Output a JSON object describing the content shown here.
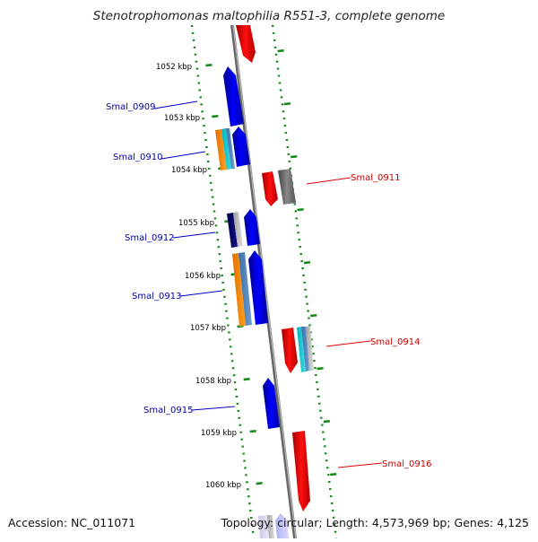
{
  "title": "Stenotrophomonas maltophilia R551-3, complete genome",
  "footer": {
    "accession": "Accession: NC_011071",
    "topology": "Topology: circular; Length: 4,573,969 bp; Genes: 4,125"
  },
  "ticks": [
    "1052 kbp",
    "1053 kbp",
    "1054 kbp",
    "1055 kbp",
    "1056 kbp",
    "1057 kbp",
    "1058 kbp",
    "1059 kbp",
    "1060 kbp"
  ],
  "genes_left": [
    "Smal_0909",
    "Smal_0910",
    "Smal_0912",
    "Smal_0913",
    "Smal_0915"
  ],
  "genes_right": [
    "Smal_0911",
    "Smal_0914",
    "Smal_0916"
  ],
  "colors": {
    "forward_strand": "#0000ee",
    "reverse_strand": "#ee0000",
    "left_label": "#0000aa",
    "right_label": "#cc0000",
    "dotted_track": "#118811",
    "axis": "#777777"
  }
}
